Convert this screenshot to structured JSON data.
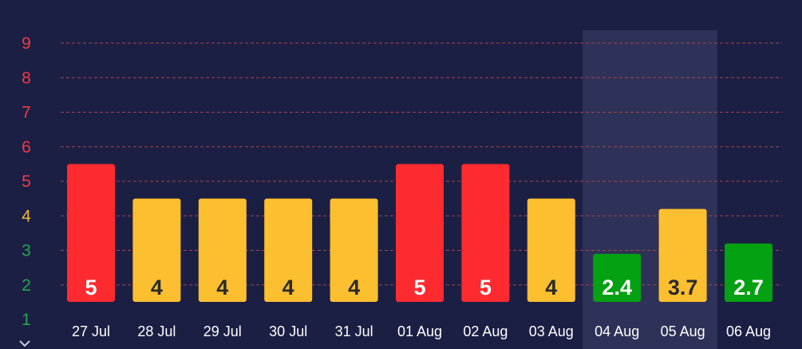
{
  "chart_data": {
    "type": "bar",
    "categories": [
      "27 Jul",
      "28 Jul",
      "29 Jul",
      "30 Jul",
      "31 Jul",
      "01 Aug",
      "02 Aug",
      "03 Aug",
      "04 Aug",
      "05 Aug",
      "06 Aug"
    ],
    "values": [
      5,
      4,
      4,
      4,
      4,
      5,
      5,
      4,
      2.4,
      3.7,
      2.7
    ],
    "value_labels": [
      "5",
      "4",
      "4",
      "4",
      "4",
      "5",
      "5",
      "4",
      "2.4",
      "3.7",
      "2.7"
    ],
    "bar_colors": [
      "#fd2b2f",
      "#fcbf2f",
      "#fcbf2f",
      "#fcbf2f",
      "#fcbf2f",
      "#fd2b2f",
      "#fd2b2f",
      "#fcbf2f",
      "#04a112",
      "#fcbf2f",
      "#04a112"
    ],
    "label_colors": [
      "#ffffff",
      "#2a2a2a",
      "#2a2a2a",
      "#2a2a2a",
      "#2a2a2a",
      "#ffffff",
      "#ffffff",
      "#2a2a2a",
      "#ffffff",
      "#2a2a2a",
      "#ffffff"
    ],
    "highlighted_categories": [
      "04 Aug",
      "05 Aug"
    ],
    "y_ticks": [
      "1",
      "2",
      "3",
      "4",
      "5",
      "6",
      "7",
      "8",
      "9"
    ],
    "y_tick_colors": [
      "#1ea84a",
      "#1ea84a",
      "#1ea84a",
      "#f0b43a",
      "#ee3a44",
      "#ee3a44",
      "#ee3a44",
      "#ee3a44",
      "#ee3a44"
    ],
    "ylim": [
      1,
      9
    ],
    "title": "",
    "xlabel": "",
    "ylabel": "",
    "grid": true,
    "gridline_color": "#a44747",
    "background_color": "#1c1f44",
    "highlight_color": "#2f3258"
  },
  "icons": {
    "scroll_indicator": "chevron-down-icon"
  }
}
